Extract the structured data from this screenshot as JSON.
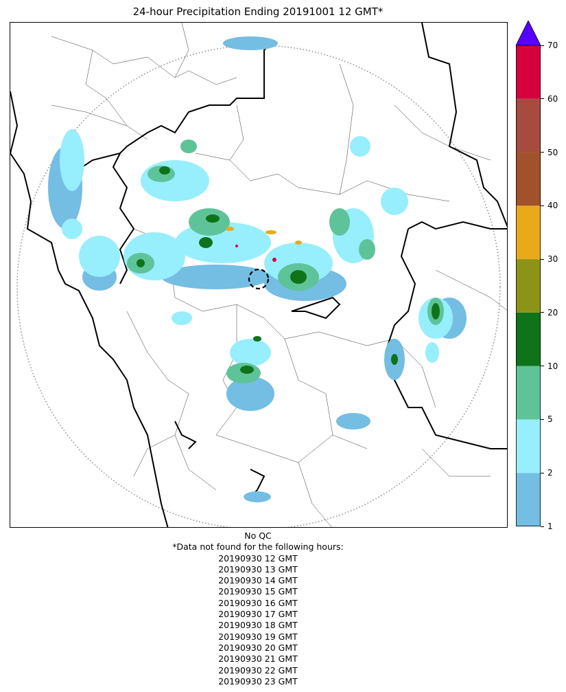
{
  "title": "24-hour Precipitation Ending 20191001 12 GMT*",
  "colorbar": {
    "ticks": [
      "1",
      "2",
      "5",
      "10",
      "20",
      "30",
      "40",
      "50",
      "60",
      "70"
    ],
    "colors": [
      "#74bde3",
      "#97eefc",
      "#5fc39a",
      "#0f731a",
      "#8c9418",
      "#e8aa1b",
      "#a1522a",
      "#a74a3f",
      "#d6003f"
    ],
    "over_color": "#5500ff"
  },
  "footer": {
    "qc_note": "No QC",
    "missing_header": "*Data not found for the following hours:",
    "missing_hours": [
      "20190930 12 GMT",
      "20190930 13 GMT",
      "20190930 14 GMT",
      "20190930 15 GMT",
      "20190930 16 GMT",
      "20190930 17 GMT",
      "20190930 18 GMT",
      "20190930 19 GMT",
      "20190930 20 GMT",
      "20190930 21 GMT",
      "20190930 22 GMT",
      "20190930 23 GMT"
    ]
  },
  "map": {
    "range_ring": "dotted",
    "radar_marker": "dashed-circle"
  }
}
